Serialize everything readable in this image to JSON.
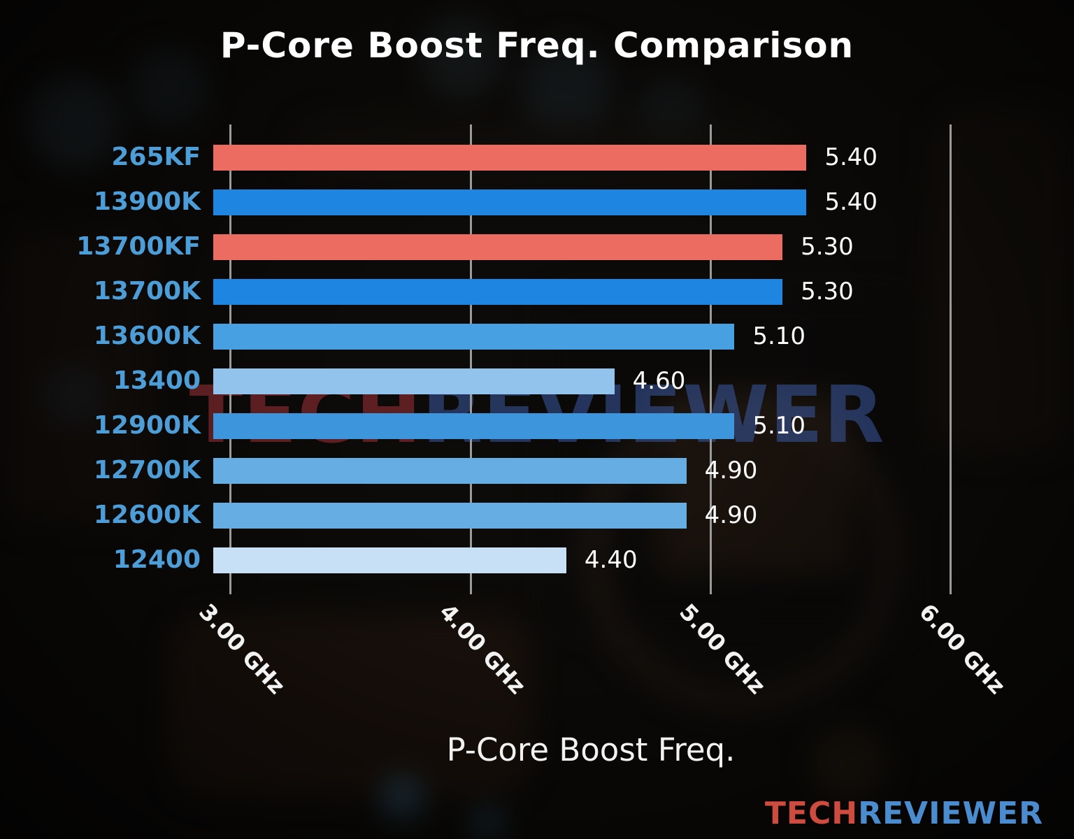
{
  "watermark": {
    "tech": "TECH",
    "reviewer": "REVIEWER"
  },
  "logo": {
    "tech": "TECH",
    "reviewer": "REVIEWER"
  },
  "chart_data": {
    "type": "bar",
    "orientation": "horizontal",
    "title": "P-Core Boost Freq. Comparison",
    "xlabel": "P-Core Boost Freq.",
    "ylabel": "",
    "categories": [
      "265KF",
      "13900K",
      "13700KF",
      "13700K",
      "13600K",
      "13400",
      "12900K",
      "12700K",
      "12600K",
      "12400"
    ],
    "values": [
      5.4,
      5.4,
      5.3,
      5.3,
      5.1,
      4.6,
      5.1,
      4.9,
      4.9,
      4.4
    ],
    "value_labels": [
      "5.40",
      "5.40",
      "5.30",
      "5.30",
      "5.10",
      "4.60",
      "5.10",
      "4.90",
      "4.90",
      "4.40"
    ],
    "bar_colors": [
      "#ED6C62",
      "#1E86E0",
      "#ED6C62",
      "#1E86E0",
      "#47A0E2",
      "#92C3EC",
      "#3D96DB",
      "#66ADE4",
      "#66ADE4",
      "#C8E0F6"
    ],
    "x_ticks": [
      "3.00 GHz",
      "4.00 GHz",
      "5.00 GHz",
      "6.00 GHz"
    ],
    "x_tick_values": [
      3.0,
      4.0,
      5.0,
      6.0
    ],
    "xlim": [
      2.93,
      6.38
    ],
    "grid": true,
    "legend": null
  },
  "colors": {
    "title": "#FFFFFF",
    "category_label": "#4D9ED8",
    "value_label": "#FFFFFF",
    "gridline": "#9B9B9B",
    "watermark_red": "rgba(160,50,55,0.55)",
    "watermark_blue": "rgba(62,95,175,0.50)",
    "logo_red": "#CE4B3F",
    "logo_blue": "#4A8CCE"
  }
}
